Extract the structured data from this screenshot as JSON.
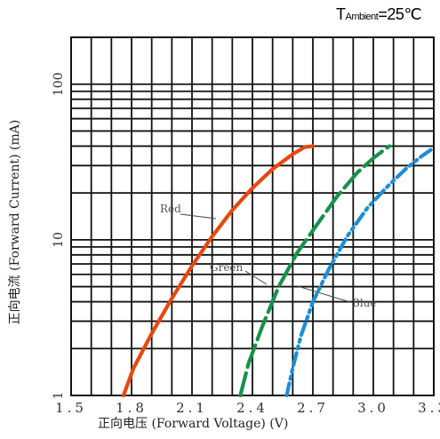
{
  "header": {
    "temp_prefix": "T",
    "temp_sub": "Ambient",
    "temp_value": "=25℃"
  },
  "chart_data": {
    "type": "line",
    "title": "",
    "xlabel": "正向电压 (Forward Voltage) (V)",
    "ylabel": "正向电流 (Forward Current) (mA)",
    "x_ticks": [
      "1.5",
      "1.8",
      "2.1",
      "2.4",
      "2.7",
      "3.0",
      "3.3"
    ],
    "y_ticks": [
      "1",
      "10",
      "100"
    ],
    "xlim": [
      1.5,
      3.3
    ],
    "ylim": [
      1,
      200
    ],
    "yscale": "log",
    "grid": true,
    "series": [
      {
        "name": "Red",
        "color": "#e8470f",
        "dash": "solid",
        "x": [
          1.76,
          1.81,
          1.9,
          2.0,
          2.1,
          2.2,
          2.3,
          2.4,
          2.5,
          2.6,
          2.66,
          2.7
        ],
        "y": [
          1.0,
          1.5,
          2.5,
          4.2,
          6.8,
          10.5,
          15.5,
          21.5,
          28.5,
          35.5,
          39.5,
          40.0
        ]
      },
      {
        "name": "Green",
        "color": "#16924a",
        "dash": "long",
        "x": [
          2.34,
          2.38,
          2.45,
          2.53,
          2.62,
          2.72,
          2.82,
          2.92,
          3.0,
          3.05,
          3.08
        ],
        "y": [
          1.0,
          1.6,
          2.8,
          5.0,
          8.2,
          12.5,
          19.0,
          27.0,
          33.5,
          37.5,
          40.0
        ]
      },
      {
        "name": "Blue",
        "color": "#1b8fd6",
        "dash": "dashdot",
        "x": [
          2.57,
          2.6,
          2.64,
          2.7,
          2.78,
          2.87,
          2.97,
          3.07,
          3.16,
          3.24,
          3.3
        ],
        "y": [
          1.0,
          1.5,
          2.4,
          4.0,
          6.5,
          10.5,
          16.0,
          22.0,
          28.5,
          34.5,
          39.0
        ]
      }
    ]
  }
}
